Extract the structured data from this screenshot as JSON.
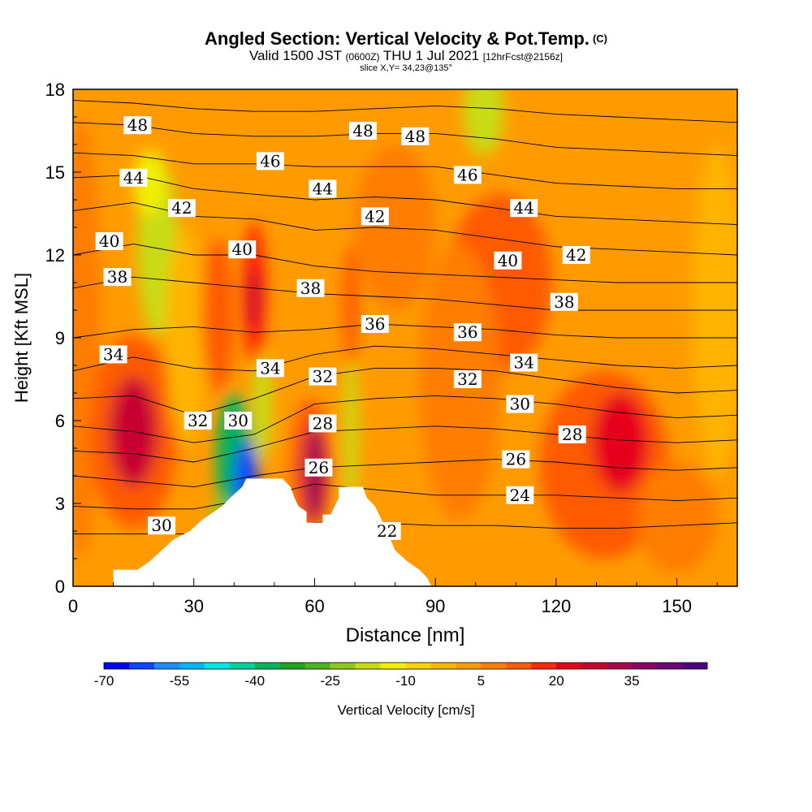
{
  "title": {
    "main": "Angled Section: Vertical Velocity & Pot.Temp.",
    "copyright": "(C)",
    "valid_a": "Valid 1500 JST",
    "valid_b": "(0600Z)",
    "valid_c": "THU 1 Jul 2021",
    "valid_d": "[12hrFcst@2156z]",
    "slice": "slice X,Y= 34,23@135°"
  },
  "chart_data": {
    "type": "heatmap",
    "xlabel": "Distance [nm]",
    "ylabel": "Height [Kft MSL]",
    "xlim": [
      0,
      165
    ],
    "ylim": [
      0,
      18
    ],
    "xticks": [
      0,
      30,
      60,
      90,
      120,
      150
    ],
    "yticks": [
      0,
      3,
      6,
      9,
      12,
      15,
      18
    ],
    "colorbar": {
      "label": "Vertical Velocity [cm/s]",
      "tick_labels": [
        "-70",
        "-55",
        "-40",
        "-25",
        "-10",
        "5",
        "20",
        "35"
      ],
      "tick_values": [
        -70,
        -55,
        -40,
        -25,
        -10,
        5,
        20,
        35
      ],
      "colors": [
        "#0000ff",
        "#0a46ff",
        "#1e8cff",
        "#00b4ff",
        "#00e6e6",
        "#00d29b",
        "#00b45a",
        "#1ea51e",
        "#4bb41e",
        "#8cc81e",
        "#c8dc14",
        "#f0f000",
        "#ffd200",
        "#ffb400",
        "#ff9b00",
        "#ff7d00",
        "#ff5a00",
        "#ff2800",
        "#e6001e",
        "#c80032",
        "#aa0050",
        "#8c0064",
        "#6e0078",
        "#500082"
      ]
    },
    "background_value": 2,
    "cells": [
      {
        "x": 2,
        "y": 9,
        "rx": 5,
        "ry": 8,
        "v": 8
      },
      {
        "x": 15,
        "y": 5.6,
        "rx": 11,
        "ry": 3.5,
        "v": 14
      },
      {
        "x": 15,
        "y": 5.6,
        "rx": 6,
        "ry": 2.0,
        "v": 26
      },
      {
        "x": 21,
        "y": 12.3,
        "rx": 5,
        "ry": 3.2,
        "v": -16
      },
      {
        "x": 19,
        "y": 14.6,
        "rx": 4,
        "ry": 1.2,
        "v": -12
      },
      {
        "x": 28,
        "y": 9,
        "rx": 5,
        "ry": 4,
        "v": -5
      },
      {
        "x": 40,
        "y": 4.5,
        "rx": 4.5,
        "ry": 2.5,
        "v": -40
      },
      {
        "x": 43,
        "y": 3.8,
        "rx": 3,
        "ry": 1.5,
        "v": -62
      },
      {
        "x": 47,
        "y": 6.5,
        "rx": 2.5,
        "ry": 2.0,
        "v": -20
      },
      {
        "x": 37,
        "y": 2.2,
        "rx": 3,
        "ry": 1.0,
        "v": -25
      },
      {
        "x": 45,
        "y": 10.6,
        "rx": 3,
        "ry": 2.6,
        "v": 16
      },
      {
        "x": 45,
        "y": 10.4,
        "rx": 1.5,
        "ry": 1.2,
        "v": 27
      },
      {
        "x": 36,
        "y": 9.8,
        "rx": 4,
        "ry": 2.8,
        "v": 10
      },
      {
        "x": 59,
        "y": 4.4,
        "rx": 5,
        "ry": 2.4,
        "v": 14
      },
      {
        "x": 60,
        "y": 4.1,
        "rx": 3,
        "ry": 1.8,
        "v": 30
      },
      {
        "x": 69,
        "y": 5.5,
        "rx": 1.8,
        "ry": 3.0,
        "v": -20
      },
      {
        "x": 69,
        "y": 10.2,
        "rx": 2,
        "ry": 2.2,
        "v": 10
      },
      {
        "x": 102,
        "y": 17.2,
        "rx": 5,
        "ry": 1.6,
        "v": -18
      },
      {
        "x": 106,
        "y": 11.0,
        "rx": 13,
        "ry": 3.2,
        "v": 13
      },
      {
        "x": 96,
        "y": 7.4,
        "rx": 10,
        "ry": 5,
        "v": 8
      },
      {
        "x": 132,
        "y": 4.4,
        "rx": 16,
        "ry": 3.4,
        "v": 11
      },
      {
        "x": 136,
        "y": 5.2,
        "rx": 7,
        "ry": 1.8,
        "v": 20
      },
      {
        "x": 160,
        "y": 10,
        "rx": 6,
        "ry": 6,
        "v": -2
      },
      {
        "x": 80,
        "y": 13,
        "rx": 10,
        "ry": 3,
        "v": 6
      },
      {
        "x": 150,
        "y": 2.5,
        "rx": 10,
        "ry": 2,
        "v": 6
      }
    ],
    "terrain": [
      [
        0,
        0
      ],
      [
        10,
        0
      ],
      [
        10,
        0.6
      ],
      [
        16,
        0.6
      ],
      [
        16,
        0.6
      ],
      [
        19,
        0.9
      ],
      [
        22,
        1.3
      ],
      [
        25,
        1.7
      ],
      [
        29,
        2.0
      ],
      [
        32,
        2.4
      ],
      [
        35,
        2.7
      ],
      [
        37,
        2.9
      ],
      [
        39,
        3.2
      ],
      [
        42,
        3.6
      ],
      [
        43,
        3.9
      ],
      [
        52,
        3.9
      ],
      [
        54,
        3.6
      ],
      [
        55,
        3.2
      ],
      [
        56,
        2.9
      ],
      [
        58,
        2.7
      ],
      [
        58,
        2.3
      ],
      [
        62,
        2.3
      ],
      [
        62,
        2.6
      ],
      [
        64,
        2.6
      ],
      [
        65,
        2.9
      ],
      [
        66,
        3.2
      ],
      [
        66,
        3.6
      ],
      [
        72,
        3.6
      ],
      [
        73,
        3.2
      ],
      [
        75,
        2.9
      ],
      [
        76,
        2.6
      ],
      [
        78,
        2.0
      ],
      [
        80,
        1.3
      ],
      [
        83,
        0.9
      ],
      [
        86,
        0.6
      ],
      [
        88,
        0.3
      ],
      [
        89,
        0
      ],
      [
        165,
        0
      ]
    ],
    "contours": [
      {
        "label": "22",
        "lx": 78,
        "ly": 2.0,
        "y": [
          1.9,
          1.9,
          1.9,
          2.0,
          2.3,
          2.3,
          2.2,
          2.2,
          2.1,
          2.1,
          2.2,
          2.3
        ]
      },
      {
        "label": "24",
        "lx": 111,
        "ly": 3.3,
        "y": [
          2.9,
          2.8,
          2.8,
          3.2,
          3.7,
          3.5,
          3.3,
          3.3,
          3.3,
          3.2,
          3.1,
          3.2
        ]
      },
      {
        "label": "26",
        "lx": 110,
        "ly": 4.6,
        "y": [
          4.0,
          3.8,
          3.6,
          4.0,
          4.3,
          4.4,
          4.5,
          4.6,
          4.5,
          4.3,
          4.2,
          4.3
        ]
      },
      {
        "label": "28",
        "lx": 62,
        "ly": 5.9,
        "y": [
          4.9,
          4.8,
          4.5,
          5.0,
          5.6,
          5.7,
          5.8,
          5.7,
          5.5,
          5.3,
          5.2,
          5.3
        ]
      },
      {
        "label": "30",
        "lx": 41,
        "ly": 6.0,
        "y": [
          5.8,
          5.6,
          5.2,
          5.5,
          6.6,
          6.8,
          6.9,
          6.8,
          6.6,
          6.3,
          6.1,
          6.2
        ]
      },
      {
        "label": "32",
        "lx": 31,
        "ly": 6.0,
        "y": [
          6.8,
          6.9,
          6.2,
          6.8,
          7.6,
          7.9,
          7.9,
          7.8,
          7.5,
          7.2,
          7.0,
          7.1
        ]
      },
      {
        "label": "34",
        "lx": 10,
        "ly": 8.4,
        "y": [
          7.8,
          8.3,
          7.9,
          7.8,
          8.4,
          8.7,
          8.6,
          8.4,
          8.2,
          8.0,
          7.9,
          8.0
        ]
      },
      {
        "label": "36",
        "lx": 75,
        "ly": 9.5,
        "y": [
          9.0,
          9.3,
          9.4,
          9.2,
          9.3,
          9.5,
          9.4,
          9.3,
          9.1,
          9.0,
          9.0,
          9.0
        ]
      },
      {
        "label": "38",
        "lx": 11,
        "ly": 11.2,
        "y": [
          10.8,
          11.2,
          11.0,
          10.8,
          10.6,
          10.5,
          10.4,
          10.2,
          10.0,
          10.0,
          10.0,
          10.0
        ]
      },
      {
        "label": "40",
        "lx": 9,
        "ly": 12.5,
        "y": [
          12.0,
          12.4,
          12.0,
          12.0,
          11.6,
          11.4,
          11.3,
          11.2,
          11.1,
          11.0,
          11.0,
          11.0
        ]
      },
      {
        "label": "42",
        "lx": 27,
        "ly": 13.7,
        "y": [
          13.6,
          13.9,
          13.4,
          13.3,
          12.9,
          13.0,
          12.9,
          12.6,
          12.3,
          12.2,
          12.1,
          12.0
        ]
      },
      {
        "label": "44",
        "lx": 15,
        "ly": 14.8,
        "y": [
          14.8,
          14.9,
          14.4,
          14.2,
          14.0,
          14.1,
          14.0,
          13.7,
          13.4,
          13.3,
          13.2,
          13.1
        ]
      },
      {
        "label": "46",
        "lx": 49,
        "ly": 15.4,
        "y": [
          15.7,
          15.6,
          15.3,
          15.3,
          15.2,
          15.2,
          15.2,
          14.9,
          14.6,
          14.5,
          14.4,
          14.4
        ]
      },
      {
        "label": "48",
        "lx": 16,
        "ly": 16.7,
        "y": [
          16.8,
          16.7,
          16.4,
          16.3,
          16.3,
          16.4,
          16.4,
          16.2,
          15.9,
          15.8,
          15.7,
          15.6
        ]
      },
      {
        "label": "",
        "lx": 0,
        "ly": 0,
        "y": [
          17.6,
          17.5,
          17.3,
          17.2,
          17.2,
          17.3,
          17.4,
          17.3,
          17.1,
          17.0,
          16.9,
          16.8
        ]
      }
    ],
    "extra_labels": [
      {
        "label": "48",
        "x": 72,
        "y": 16.5
      },
      {
        "label": "48",
        "x": 85,
        "y": 16.3
      },
      {
        "label": "46",
        "x": 98,
        "y": 14.9
      },
      {
        "label": "44",
        "x": 62,
        "y": 14.4
      },
      {
        "label": "44",
        "x": 112,
        "y": 13.7
      },
      {
        "label": "42",
        "x": 75,
        "y": 13.4
      },
      {
        "label": "42",
        "x": 125,
        "y": 12.0
      },
      {
        "label": "40",
        "x": 108,
        "y": 11.8
      },
      {
        "label": "38",
        "x": 59,
        "y": 10.8
      },
      {
        "label": "38",
        "x": 122,
        "y": 10.3
      },
      {
        "label": "36",
        "x": 98,
        "y": 9.2
      },
      {
        "label": "34",
        "x": 49,
        "y": 7.9
      },
      {
        "label": "34",
        "x": 112,
        "y": 8.1
      },
      {
        "label": "32",
        "x": 62,
        "y": 7.6
      },
      {
        "label": "32",
        "x": 98,
        "y": 7.5
      },
      {
        "label": "30",
        "x": 111,
        "y": 6.6
      },
      {
        "label": "28",
        "x": 124,
        "y": 5.5
      },
      {
        "label": "26",
        "x": 61,
        "y": 4.3
      },
      {
        "label": "30",
        "x": 22,
        "y": 2.2
      },
      {
        "label": "40",
        "x": 42,
        "y": 12.2
      }
    ]
  }
}
